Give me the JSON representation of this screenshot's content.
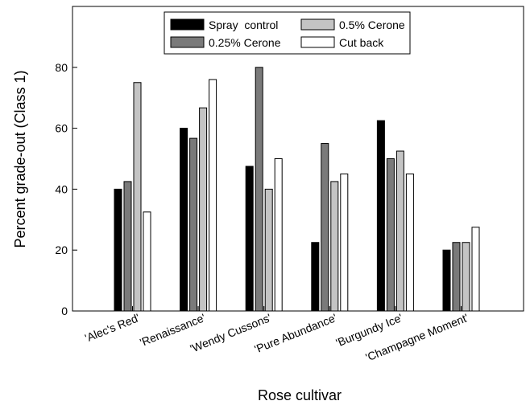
{
  "chart_data": {
    "type": "bar",
    "title": "",
    "xlabel": "Rose cultivar",
    "ylabel": "Percent grade-out (Class 1)",
    "ylim": [
      0,
      100
    ],
    "yticks": [
      0,
      20,
      40,
      60,
      80
    ],
    "grid": false,
    "legend_position": "top-center",
    "categories": [
      "'Alec's Red'",
      "'Renaissance'",
      "'Wendy Cussons'",
      "'Pure Abundance'",
      "'Burgundy Ice'",
      "'Champagne Moment'"
    ],
    "series": [
      {
        "name": "Spray  control",
        "color": "#000000",
        "values": [
          40,
          60,
          47.5,
          22.5,
          62.5,
          20
        ]
      },
      {
        "name": "0.25% Cerone",
        "color": "#7a7a7a",
        "values": [
          42.5,
          56.7,
          80,
          55,
          50,
          22.5
        ]
      },
      {
        "name": "0.5% Cerone",
        "color": "#c4c4c4",
        "values": [
          75,
          66.7,
          40,
          42.5,
          52.5,
          22.5
        ]
      },
      {
        "name": "Cut back",
        "color": "#ffffff",
        "values": [
          32.5,
          76,
          50,
          45,
          45,
          27.5
        ]
      }
    ]
  }
}
